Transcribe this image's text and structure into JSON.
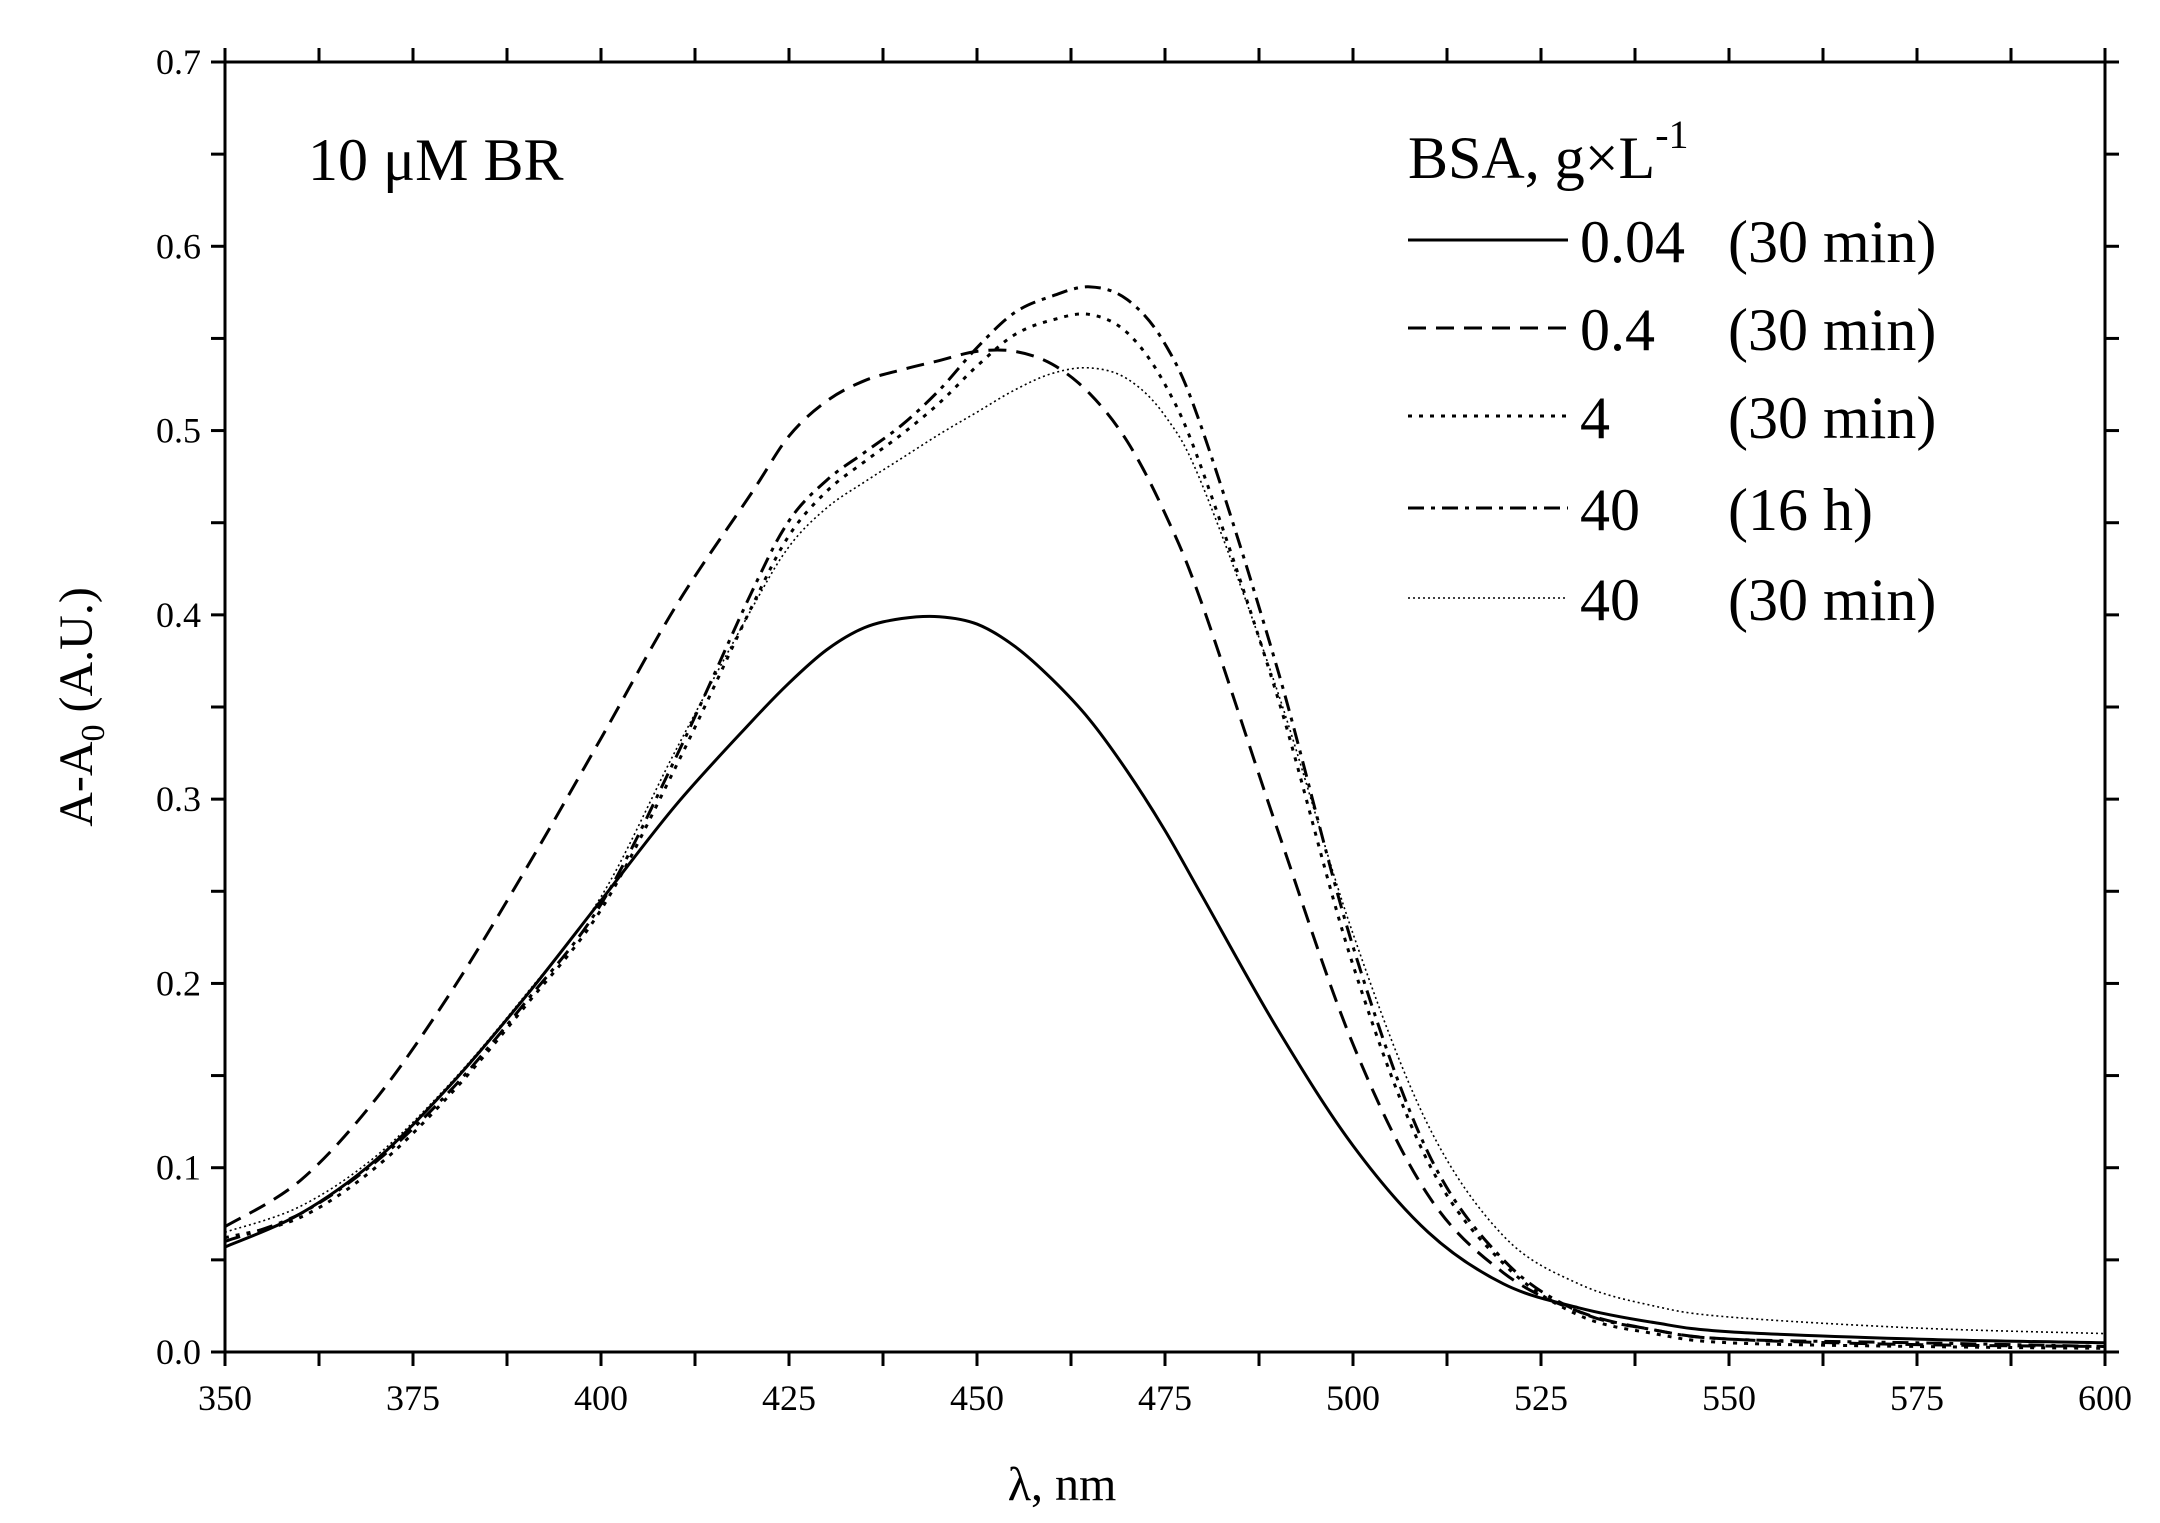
{
  "chart_data": {
    "type": "line",
    "title": "",
    "annotation": "10 μM BR",
    "xlabel": "λ, nm",
    "ylabel_main": "A-A",
    "ylabel_sub": "0",
    "ylabel_tail": " (A.U.)",
    "xlim": [
      350,
      600
    ],
    "ylim": [
      0.0,
      0.7
    ],
    "xticks": [
      350,
      375,
      400,
      425,
      450,
      475,
      500,
      525,
      550,
      575,
      600
    ],
    "xtick_labels": [
      "350",
      "375",
      "400",
      "425",
      "450",
      "475",
      "500",
      "525",
      "550",
      "575",
      "600"
    ],
    "yticks": [
      0.0,
      0.1,
      0.2,
      0.3,
      0.4,
      0.5,
      0.6,
      0.7
    ],
    "ytick_labels": [
      "0.0",
      "0.1",
      "0.2",
      "0.3",
      "0.4",
      "0.5",
      "0.6",
      "0.7"
    ],
    "grid": false,
    "legend": {
      "position": "top-right",
      "title_main": "BSA, g×L",
      "title_sup": "-1"
    },
    "x": [
      350,
      360,
      370,
      380,
      390,
      400,
      410,
      420,
      425,
      430,
      435,
      440,
      445,
      450,
      455,
      460,
      465,
      470,
      475,
      480,
      490,
      500,
      510,
      520,
      530,
      540,
      550,
      575,
      600
    ],
    "series": [
      {
        "name": "0.04 (30 min)",
        "conc": "0.04",
        "time": "(30 min)",
        "style": "solid",
        "values": [
          0.057,
          0.075,
          0.104,
          0.145,
          0.193,
          0.245,
          0.297,
          0.342,
          0.363,
          0.381,
          0.393,
          0.398,
          0.399,
          0.395,
          0.383,
          0.365,
          0.343,
          0.315,
          0.283,
          0.247,
          0.175,
          0.112,
          0.065,
          0.037,
          0.024,
          0.016,
          0.011,
          0.007,
          0.005
        ]
      },
      {
        "name": "0.4 (30 min)",
        "conc": "0.4",
        "time": "(30 min)",
        "style": "dashed",
        "values": [
          0.068,
          0.093,
          0.137,
          0.195,
          0.262,
          0.333,
          0.405,
          0.466,
          0.497,
          0.516,
          0.527,
          0.533,
          0.538,
          0.543,
          0.543,
          0.536,
          0.52,
          0.494,
          0.455,
          0.405,
          0.283,
          0.167,
          0.085,
          0.043,
          0.022,
          0.012,
          0.007,
          0.004,
          0.003
        ]
      },
      {
        "name": "4 (30 min)",
        "conc": "4",
        "time": "(30 min)",
        "style": "dotted",
        "values": [
          0.062,
          0.073,
          0.1,
          0.14,
          0.188,
          0.24,
          0.318,
          0.404,
          0.443,
          0.467,
          0.483,
          0.498,
          0.515,
          0.535,
          0.552,
          0.56,
          0.563,
          0.553,
          0.525,
          0.478,
          0.355,
          0.21,
          0.103,
          0.048,
          0.02,
          0.01,
          0.005,
          0.003,
          0.002
        ]
      },
      {
        "name": "40 (16 h)",
        "conc": "40",
        "time": "(16 h)",
        "style": "dashdot",
        "values": [
          0.06,
          0.075,
          0.103,
          0.142,
          0.19,
          0.243,
          0.323,
          0.412,
          0.451,
          0.473,
          0.488,
          0.503,
          0.522,
          0.545,
          0.564,
          0.573,
          0.578,
          0.571,
          0.547,
          0.5,
          0.37,
          0.22,
          0.108,
          0.05,
          0.022,
          0.012,
          0.007,
          0.005,
          0.003
        ]
      },
      {
        "name": "40 (30 min)",
        "conc": "40",
        "time": "(30 min)",
        "style": "fine-dotted",
        "values": [
          0.065,
          0.079,
          0.106,
          0.146,
          0.194,
          0.247,
          0.327,
          0.403,
          0.437,
          0.458,
          0.472,
          0.485,
          0.498,
          0.51,
          0.522,
          0.531,
          0.534,
          0.528,
          0.508,
          0.47,
          0.358,
          0.227,
          0.123,
          0.063,
          0.037,
          0.025,
          0.019,
          0.013,
          0.01
        ]
      }
    ]
  }
}
